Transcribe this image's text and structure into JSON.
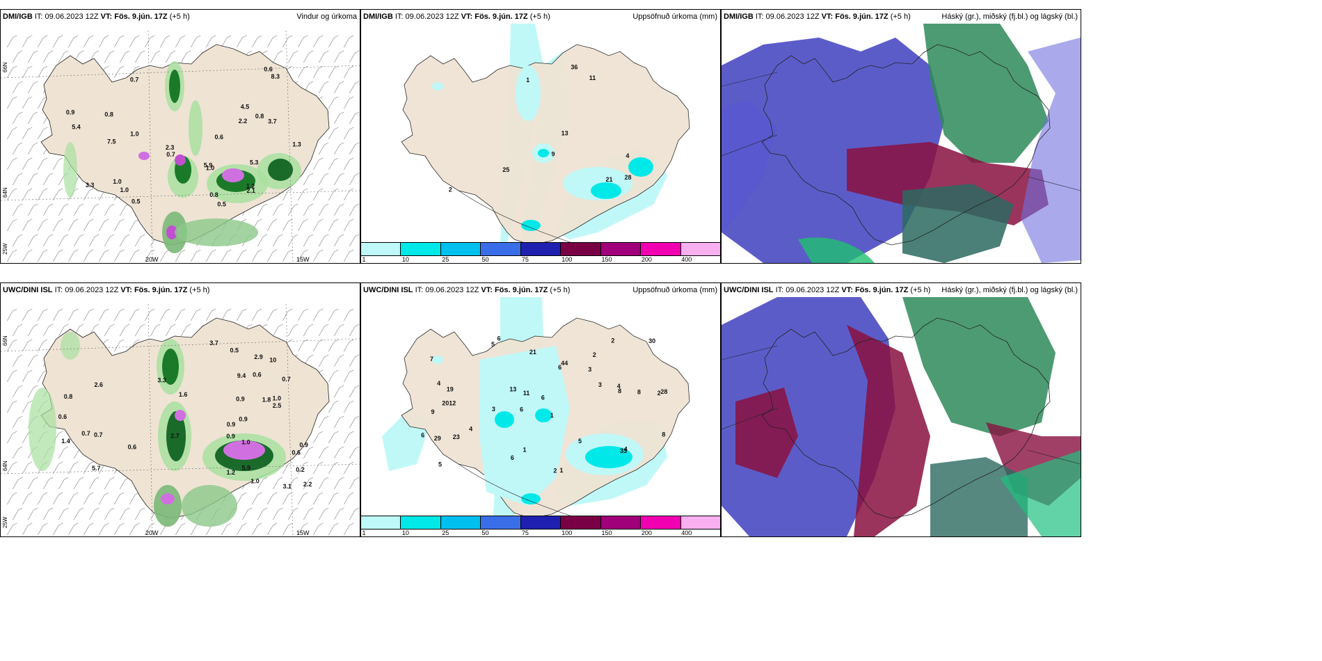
{
  "panels": [
    {
      "id": "dmi-wind",
      "model": "DMI/IGB",
      "it_label": "IT:",
      "it": "09.06.2023 12Z",
      "vt_label": "VT:",
      "vt": "Fös. 9.jún. 17Z",
      "lead": "(+5 h)",
      "title": "Vindur og úrkoma"
    },
    {
      "id": "dmi-accum",
      "model": "DMI/IGB",
      "it_label": "IT:",
      "it": "09.06.2023 12Z",
      "vt_label": "VT:",
      "vt": "Fös. 9.jún. 17Z",
      "lead": "(+5 h)",
      "title": "Uppsöfnuð úrkoma (mm)"
    },
    {
      "id": "dmi-cloud",
      "model": "DMI/IGB",
      "it_label": "IT:",
      "it": "09.06.2023 12Z",
      "vt_label": "VT:",
      "vt": "Fös. 9.jún. 17Z",
      "lead": "(+5 h)",
      "title": "Háský (gr.), miðský (fj.bl.) og lágský (bl.)"
    },
    {
      "id": "uwc-wind",
      "model": "UWC/DINI ISL",
      "it_label": "IT:",
      "it": "09.06.2023 12Z",
      "vt_label": "VT:",
      "vt": "Fös. 9.jún. 17Z",
      "lead": "(+5 h)",
      "title": ""
    },
    {
      "id": "uwc-accum",
      "model": "UWC/DINI ISL",
      "it_label": "IT:",
      "it": "09.06.2023 12Z",
      "vt_label": "VT:",
      "vt": "Fös. 9.jún. 17Z",
      "lead": "(+5 h)",
      "title": "Uppsöfnuð úrkoma (mm)"
    },
    {
      "id": "uwc-cloud",
      "model": "UWC/DINI ISL",
      "it_label": "IT:",
      "it": "09.06.2023 12Z",
      "vt_label": "VT:",
      "vt": "Fös. 9.jún. 17Z",
      "lead": "(+5 h)",
      "title": "Háský (gr.), miðský (fj.bl.) og lágský (bl.)"
    }
  ],
  "axis": {
    "lon": [
      "20W",
      "15W"
    ],
    "lat": [
      "66N",
      "64N",
      "25W"
    ]
  },
  "colorbar": {
    "ticks": [
      "1",
      "10",
      "25",
      "50",
      "75",
      "100",
      "150",
      "200",
      "400"
    ],
    "colors": [
      "#bff8f8",
      "#00e8e8",
      "#00c0f0",
      "#3a6ee8",
      "#2020b0",
      "#7a0046",
      "#a0007a",
      "#f000b0",
      "#f8b0f0"
    ]
  },
  "dmi_wind_labels": [
    "0.5",
    "0.7",
    "1.0",
    "0.8",
    "0.8",
    "0.8",
    "1.3",
    "1.0",
    "0.7",
    "1.0",
    "3.3",
    "0.9",
    "2.3",
    "5.9",
    "2.2",
    "0.6",
    "5.4",
    "8.3",
    "5.3",
    "3.7",
    "1.2",
    "1.0",
    "0.5",
    "2.1",
    "0.6",
    "4.5",
    "7.5"
  ],
  "dmi_accum_labels": [
    "2",
    "4",
    "13",
    "9",
    "1",
    "36",
    "28",
    "11",
    "21",
    "25"
  ],
  "uwc_wind_labels": [
    "0.9",
    "0.9",
    "1.8",
    "0.6",
    "1.2",
    "0.6",
    "1.0",
    "1.6",
    "0.2",
    "1.0",
    "0.9",
    "0.9",
    "1.4",
    "1.0",
    "0.6",
    "3.1",
    "10",
    "0.7",
    "2.9",
    "3.3",
    "2.7",
    "0.6",
    "0.9",
    "0.5",
    "2.5",
    "5.7",
    "2.6",
    "9.4",
    "2.2",
    "0.7",
    "0.7",
    "3.7",
    "0.8",
    "5.9"
  ],
  "uwc_accum_labels": [
    "6",
    "2",
    "2",
    "6",
    "1",
    "12",
    "7",
    "3",
    "9",
    "6",
    "6",
    "5",
    "5",
    "3",
    "2",
    "1",
    "1",
    "2",
    "3",
    "4",
    "19",
    "20",
    "28",
    "8",
    "6",
    "4",
    "11",
    "8",
    "4",
    "29",
    "33",
    "44",
    "23",
    "13",
    "5",
    "8",
    "4",
    "6",
    "30",
    "21"
  ]
}
